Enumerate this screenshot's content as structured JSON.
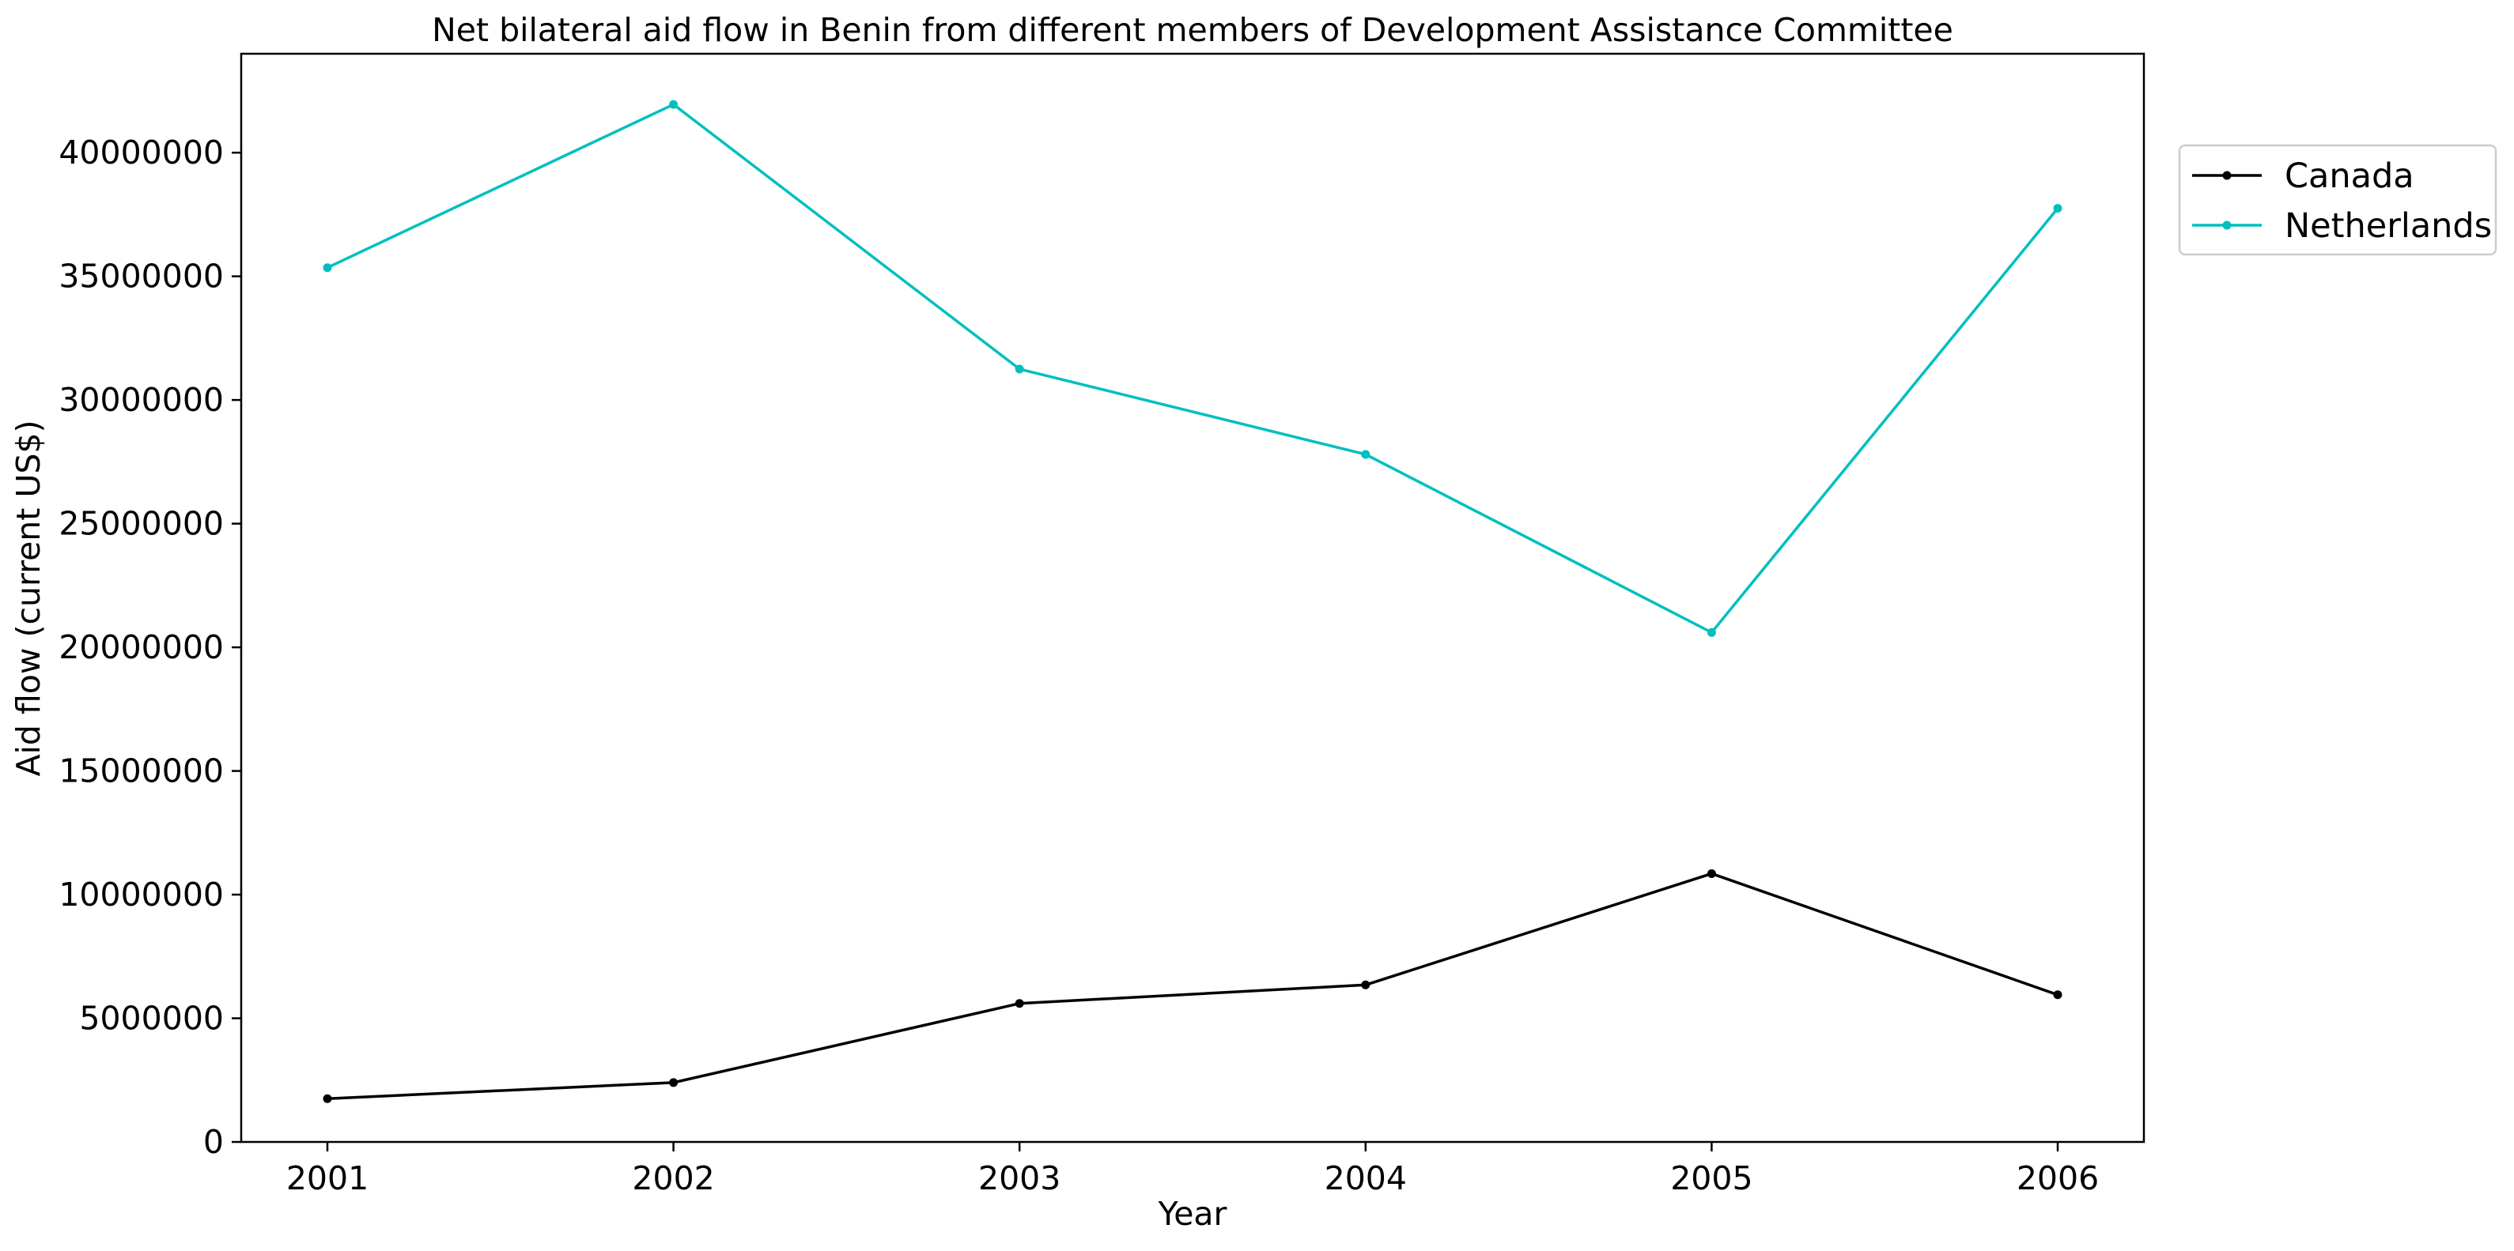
{
  "chart_data": {
    "type": "line",
    "title": "Net bilateral aid flow in Benin from different members of Development Assistance Committee",
    "xlabel": "Year",
    "ylabel": "Aid flow (current US$)",
    "x": [
      "2001",
      "2002",
      "2003",
      "2004",
      "2005",
      "2006"
    ],
    "ylim": [
      0,
      44000000
    ],
    "yticks": [
      0,
      5000000,
      10000000,
      15000000,
      20000000,
      25000000,
      30000000,
      35000000,
      40000000
    ],
    "ytick_labels": [
      "0",
      "5000000",
      "10000000",
      "15000000",
      "20000000",
      "25000000",
      "30000000",
      "35000000",
      "40000000"
    ],
    "grid": false,
    "legend_position": "upper-right-outside",
    "series": [
      {
        "name": "Canada",
        "color": "#000000",
        "values": [
          1750000,
          2400000,
          5600000,
          6350000,
          10850000,
          5950000
        ]
      },
      {
        "name": "Netherlands",
        "color": "#00bfbf",
        "values": [
          35350000,
          41950000,
          31250000,
          27800000,
          20600000,
          37750000
        ]
      }
    ]
  }
}
